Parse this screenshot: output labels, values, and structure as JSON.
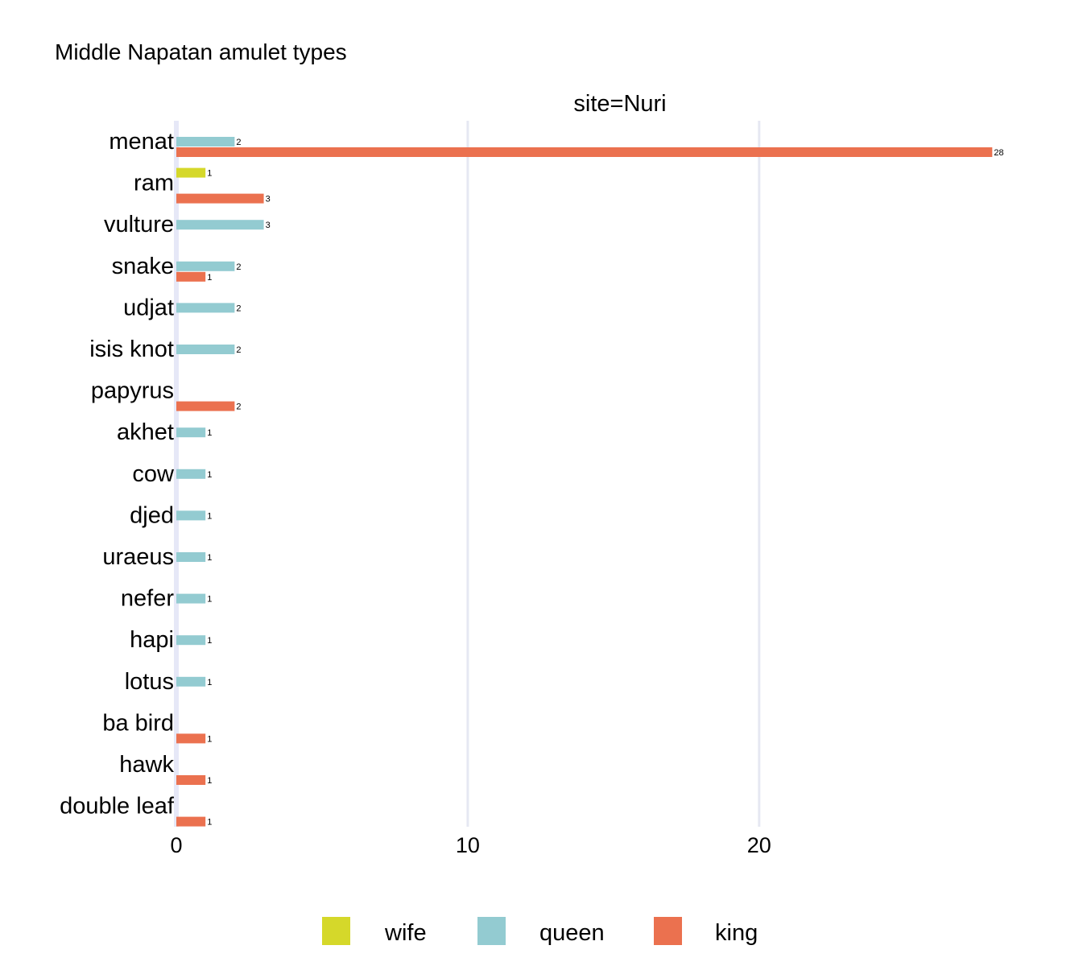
{
  "chart_data": {
    "type": "bar",
    "orientation": "horizontal",
    "title": "Middle Napatan amulet types",
    "facet_label": "site=Nuri",
    "categories": [
      "menat",
      "ram",
      "vulture",
      "snake",
      "udjat",
      "isis knot",
      "papyrus",
      "akhet",
      "cow",
      "djed",
      "uraeus",
      "nefer",
      "hapi",
      "lotus",
      "ba bird",
      "hawk",
      "double leaf"
    ],
    "series": [
      {
        "name": "wife",
        "color": "#d5d82a",
        "values": [
          null,
          1,
          null,
          null,
          null,
          null,
          null,
          null,
          null,
          null,
          null,
          null,
          null,
          null,
          null,
          null,
          null
        ]
      },
      {
        "name": "queen",
        "color": "#93cbd1",
        "values": [
          2,
          null,
          3,
          2,
          2,
          2,
          null,
          1,
          1,
          1,
          1,
          1,
          1,
          1,
          null,
          null,
          null
        ]
      },
      {
        "name": "king",
        "color": "#eb714f",
        "values": [
          28,
          3,
          null,
          1,
          null,
          null,
          2,
          null,
          null,
          null,
          null,
          null,
          null,
          null,
          1,
          1,
          1
        ]
      }
    ],
    "x_ticks": [
      0,
      10,
      20
    ],
    "xlim": [
      0,
      29.4
    ],
    "xlabel": "",
    "ylabel": "",
    "grid": true,
    "legend_position": "bottom"
  }
}
